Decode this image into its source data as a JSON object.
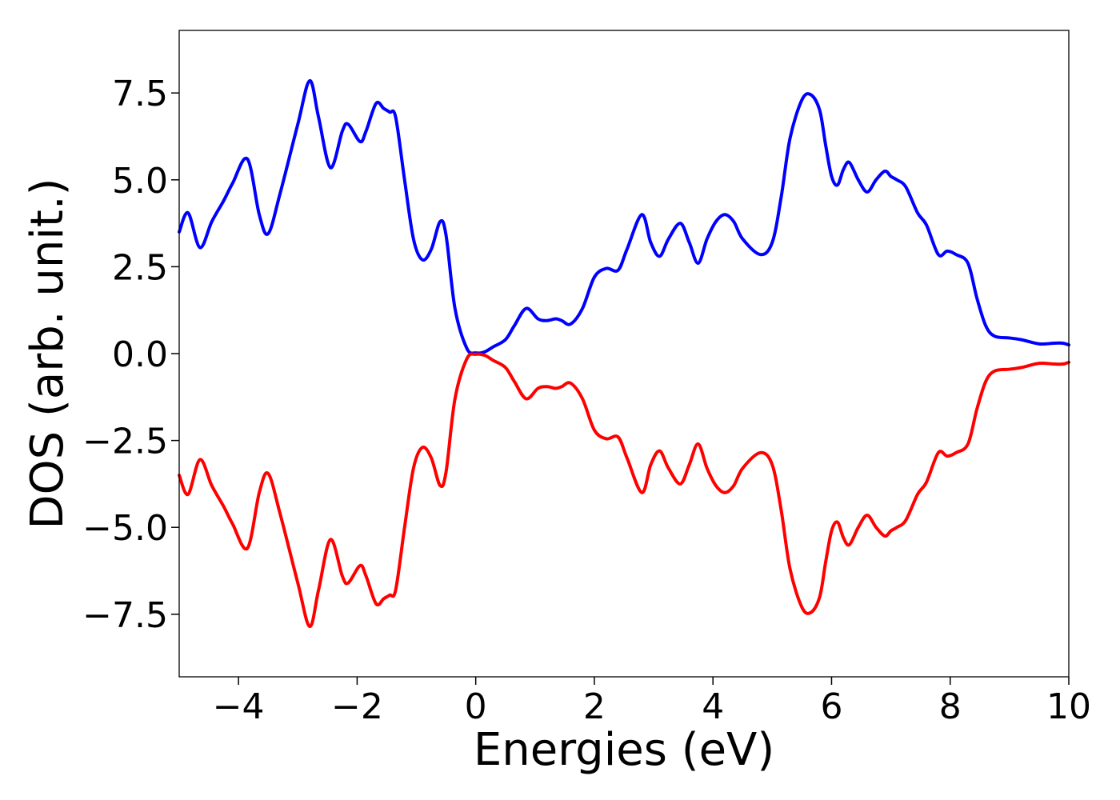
{
  "chart_data": {
    "type": "line",
    "xlabel": "Energies (eV)",
    "ylabel": "DOS (arb. unit.)",
    "xlim": [
      -5,
      10
    ],
    "ylim": [
      -9.3,
      9.3
    ],
    "grid": false,
    "x_ticks": [
      -4,
      -2,
      0,
      2,
      4,
      6,
      8,
      10
    ],
    "x_tick_labels": [
      "−4",
      "−2",
      "0",
      "2",
      "4",
      "6",
      "8",
      "10"
    ],
    "y_ticks": [
      -7.5,
      -5.0,
      -2.5,
      0.0,
      2.5,
      5.0,
      7.5
    ],
    "y_tick_labels": [
      "−7.5",
      "−5.0",
      "−2.5",
      "0.0",
      "2.5",
      "5.0",
      "7.5"
    ],
    "series": [
      {
        "color": "#0000ff",
        "points": [
          [
            -5.0,
            3.5
          ],
          [
            -4.85,
            4.05
          ],
          [
            -4.65,
            3.05
          ],
          [
            -4.45,
            3.8
          ],
          [
            -4.25,
            4.4
          ],
          [
            -4.1,
            4.9
          ],
          [
            -3.85,
            5.6
          ],
          [
            -3.65,
            4.0
          ],
          [
            -3.5,
            3.45
          ],
          [
            -3.3,
            4.6
          ],
          [
            -3.0,
            6.6
          ],
          [
            -2.8,
            7.85
          ],
          [
            -2.65,
            6.8
          ],
          [
            -2.45,
            5.35
          ],
          [
            -2.25,
            6.4
          ],
          [
            -2.15,
            6.6
          ],
          [
            -1.95,
            6.1
          ],
          [
            -1.85,
            6.4
          ],
          [
            -1.68,
            7.2
          ],
          [
            -1.55,
            7.05
          ],
          [
            -1.45,
            6.95
          ],
          [
            -1.35,
            6.8
          ],
          [
            -1.2,
            5.0
          ],
          [
            -1.05,
            3.3
          ],
          [
            -0.9,
            2.7
          ],
          [
            -0.75,
            3.0
          ],
          [
            -0.6,
            3.8
          ],
          [
            -0.5,
            3.4
          ],
          [
            -0.35,
            1.3
          ],
          [
            -0.15,
            0.15
          ],
          [
            0.0,
            0.02
          ],
          [
            0.15,
            0.05
          ],
          [
            0.3,
            0.2
          ],
          [
            0.5,
            0.4
          ],
          [
            0.65,
            0.8
          ],
          [
            0.85,
            1.3
          ],
          [
            1.05,
            1.0
          ],
          [
            1.2,
            0.95
          ],
          [
            1.35,
            1.0
          ],
          [
            1.45,
            0.95
          ],
          [
            1.6,
            0.85
          ],
          [
            1.8,
            1.3
          ],
          [
            2.0,
            2.2
          ],
          [
            2.2,
            2.45
          ],
          [
            2.4,
            2.4
          ],
          [
            2.55,
            3.0
          ],
          [
            2.8,
            4.0
          ],
          [
            2.95,
            3.2
          ],
          [
            3.1,
            2.8
          ],
          [
            3.25,
            3.3
          ],
          [
            3.45,
            3.75
          ],
          [
            3.6,
            3.2
          ],
          [
            3.75,
            2.6
          ],
          [
            3.9,
            3.3
          ],
          [
            4.05,
            3.8
          ],
          [
            4.2,
            4.0
          ],
          [
            4.35,
            3.8
          ],
          [
            4.5,
            3.3
          ],
          [
            4.8,
            2.85
          ],
          [
            5.0,
            3.2
          ],
          [
            5.15,
            4.5
          ],
          [
            5.3,
            6.2
          ],
          [
            5.5,
            7.3
          ],
          [
            5.65,
            7.45
          ],
          [
            5.8,
            7.0
          ],
          [
            5.9,
            6.0
          ],
          [
            6.0,
            5.1
          ],
          [
            6.1,
            4.85
          ],
          [
            6.2,
            5.3
          ],
          [
            6.3,
            5.5
          ],
          [
            6.45,
            5.0
          ],
          [
            6.6,
            4.65
          ],
          [
            6.75,
            5.0
          ],
          [
            6.9,
            5.25
          ],
          [
            7.0,
            5.1
          ],
          [
            7.1,
            5.0
          ],
          [
            7.25,
            4.8
          ],
          [
            7.45,
            4.05
          ],
          [
            7.6,
            3.7
          ],
          [
            7.8,
            2.85
          ],
          [
            7.95,
            2.95
          ],
          [
            8.1,
            2.85
          ],
          [
            8.3,
            2.6
          ],
          [
            8.45,
            1.6
          ],
          [
            8.6,
            0.8
          ],
          [
            8.75,
            0.5
          ],
          [
            9.0,
            0.45
          ],
          [
            9.2,
            0.4
          ],
          [
            9.5,
            0.28
          ],
          [
            9.75,
            0.3
          ],
          [
            9.9,
            0.3
          ],
          [
            10.0,
            0.25
          ]
        ]
      },
      {
        "color": "#ff0000",
        "points": [
          [
            -5.0,
            -3.5
          ],
          [
            -4.85,
            -4.05
          ],
          [
            -4.65,
            -3.05
          ],
          [
            -4.45,
            -3.8
          ],
          [
            -4.25,
            -4.4
          ],
          [
            -4.1,
            -4.9
          ],
          [
            -3.85,
            -5.6
          ],
          [
            -3.65,
            -4.0
          ],
          [
            -3.5,
            -3.45
          ],
          [
            -3.3,
            -4.6
          ],
          [
            -3.0,
            -6.6
          ],
          [
            -2.8,
            -7.85
          ],
          [
            -2.65,
            -6.8
          ],
          [
            -2.45,
            -5.35
          ],
          [
            -2.25,
            -6.4
          ],
          [
            -2.15,
            -6.6
          ],
          [
            -1.95,
            -6.1
          ],
          [
            -1.85,
            -6.4
          ],
          [
            -1.68,
            -7.2
          ],
          [
            -1.55,
            -7.05
          ],
          [
            -1.45,
            -6.95
          ],
          [
            -1.35,
            -6.8
          ],
          [
            -1.2,
            -5.0
          ],
          [
            -1.05,
            -3.3
          ],
          [
            -0.9,
            -2.7
          ],
          [
            -0.75,
            -3.0
          ],
          [
            -0.6,
            -3.8
          ],
          [
            -0.5,
            -3.4
          ],
          [
            -0.35,
            -1.3
          ],
          [
            -0.15,
            -0.15
          ],
          [
            0.0,
            -0.02
          ],
          [
            0.15,
            -0.05
          ],
          [
            0.3,
            -0.2
          ],
          [
            0.5,
            -0.4
          ],
          [
            0.65,
            -0.8
          ],
          [
            0.85,
            -1.3
          ],
          [
            1.05,
            -1.0
          ],
          [
            1.2,
            -0.95
          ],
          [
            1.35,
            -1.0
          ],
          [
            1.45,
            -0.95
          ],
          [
            1.6,
            -0.85
          ],
          [
            1.8,
            -1.3
          ],
          [
            2.0,
            -2.2
          ],
          [
            2.2,
            -2.45
          ],
          [
            2.4,
            -2.4
          ],
          [
            2.55,
            -3.0
          ],
          [
            2.8,
            -4.0
          ],
          [
            2.95,
            -3.2
          ],
          [
            3.1,
            -2.8
          ],
          [
            3.25,
            -3.3
          ],
          [
            3.45,
            -3.75
          ],
          [
            3.6,
            -3.2
          ],
          [
            3.75,
            -2.6
          ],
          [
            3.9,
            -3.3
          ],
          [
            4.05,
            -3.8
          ],
          [
            4.2,
            -4.0
          ],
          [
            4.35,
            -3.8
          ],
          [
            4.5,
            -3.3
          ],
          [
            4.8,
            -2.85
          ],
          [
            5.0,
            -3.2
          ],
          [
            5.15,
            -4.5
          ],
          [
            5.3,
            -6.2
          ],
          [
            5.5,
            -7.3
          ],
          [
            5.65,
            -7.45
          ],
          [
            5.8,
            -7.0
          ],
          [
            5.9,
            -6.0
          ],
          [
            6.0,
            -5.1
          ],
          [
            6.1,
            -4.85
          ],
          [
            6.2,
            -5.3
          ],
          [
            6.3,
            -5.5
          ],
          [
            6.45,
            -5.0
          ],
          [
            6.6,
            -4.65
          ],
          [
            6.75,
            -5.0
          ],
          [
            6.9,
            -5.25
          ],
          [
            7.0,
            -5.1
          ],
          [
            7.1,
            -5.0
          ],
          [
            7.25,
            -4.8
          ],
          [
            7.45,
            -4.05
          ],
          [
            7.6,
            -3.7
          ],
          [
            7.8,
            -2.85
          ],
          [
            7.95,
            -2.95
          ],
          [
            8.1,
            -2.85
          ],
          [
            8.3,
            -2.6
          ],
          [
            8.45,
            -1.6
          ],
          [
            8.6,
            -0.8
          ],
          [
            8.75,
            -0.5
          ],
          [
            9.0,
            -0.45
          ],
          [
            9.2,
            -0.4
          ],
          [
            9.5,
            -0.28
          ],
          [
            9.75,
            -0.3
          ],
          [
            9.9,
            -0.3
          ],
          [
            10.0,
            -0.25
          ]
        ]
      }
    ]
  }
}
